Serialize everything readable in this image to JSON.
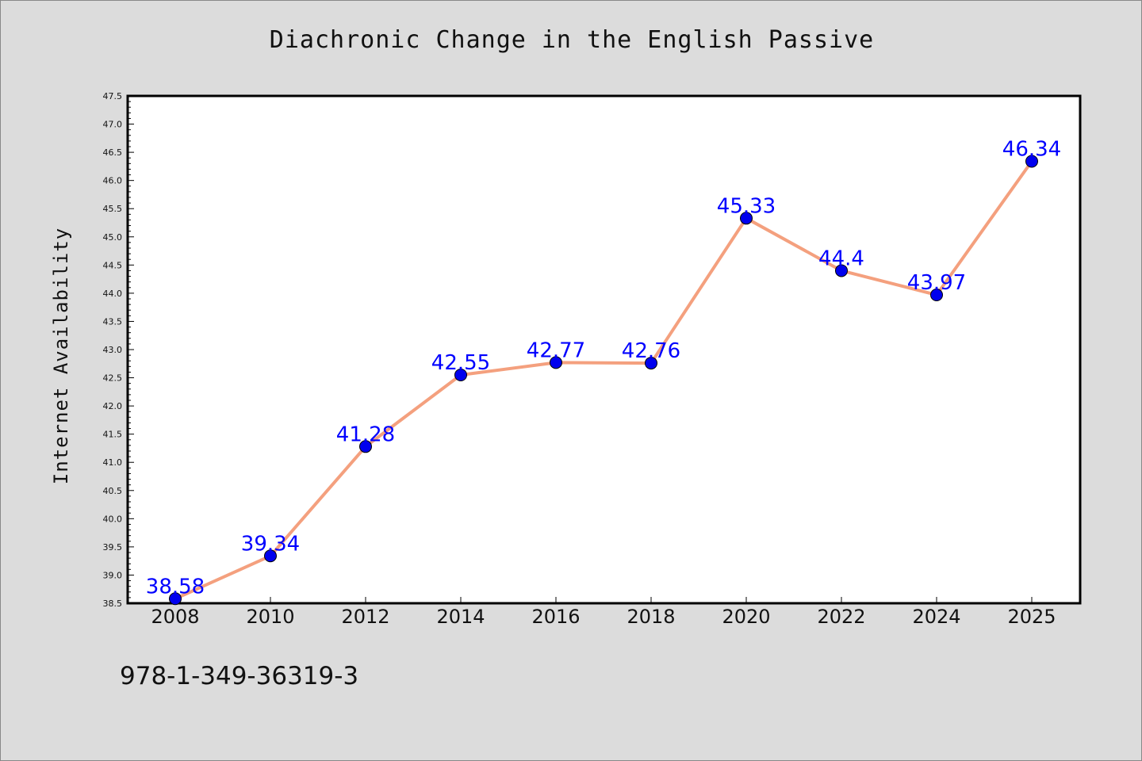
{
  "chart_data": {
    "type": "line",
    "title": "Diachronic Change in the English Passive",
    "xlabel": "",
    "ylabel": "Internet Availability",
    "categories": [
      "2008",
      "2010",
      "2012",
      "2014",
      "2016",
      "2018",
      "2020",
      "2022",
      "2024",
      "2025"
    ],
    "series": [
      {
        "values": [
          38.58,
          39.34,
          41.28,
          42.55,
          42.77,
          42.76,
          45.33,
          44.4,
          43.97,
          46.34
        ],
        "labels": [
          "38.58",
          "39.34",
          "41.28",
          "42.55",
          "42.77",
          "42.76",
          "45.33",
          "44.4",
          "43.97",
          "46.34"
        ]
      }
    ],
    "ylim": [
      38.5,
      47.5
    ],
    "yticks": [
      "38.5",
      "39.0",
      "39.5",
      "40.0",
      "40.5",
      "41.0",
      "41.5",
      "42.0",
      "42.5",
      "43.0",
      "43.5",
      "44.0",
      "44.5",
      "45.0",
      "45.5",
      "46.0",
      "46.5",
      "47.0",
      "47.5"
    ],
    "grid": false,
    "legend": "none",
    "colors": {
      "line": "#f4a07e",
      "marker": "#0000ee",
      "label": "#0000ff",
      "background": "#dcdcdc",
      "plot_area": "#ffffff"
    }
  },
  "footnote": "978-1-349-36319-3"
}
